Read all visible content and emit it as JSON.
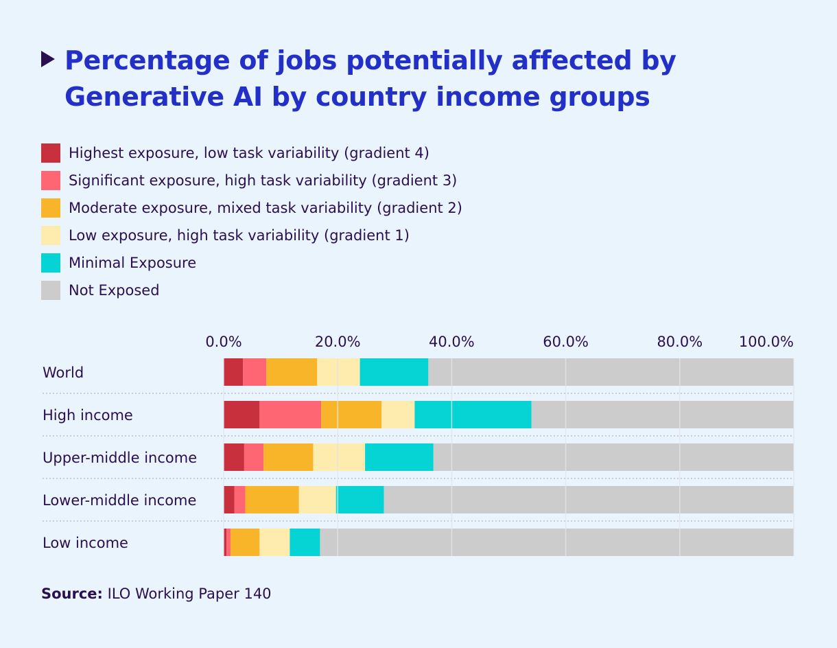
{
  "chart_data": {
    "type": "bar",
    "orientation": "horizontal",
    "stacked": true,
    "title": "Percentage of jobs potentially affected by Generative AI by country income groups",
    "categories": [
      "World",
      "High income",
      "Upper-middle income",
      "Lower-middle income",
      "Low income"
    ],
    "series": [
      {
        "name": "Highest exposure, low task variability (gradient 4)",
        "color": "#c8303d",
        "values": [
          3.4,
          6.3,
          3.6,
          1.9,
          0.5
        ]
      },
      {
        "name": "Significant exposure, high task variability (gradient 3)",
        "color": "#fd6672",
        "values": [
          4.1,
          10.8,
          3.4,
          1.9,
          0.7
        ]
      },
      {
        "name": "Moderate exposure, mixed task variability (gradient 2)",
        "color": "#f9b52a",
        "values": [
          8.9,
          10.6,
          8.7,
          9.4,
          5.1
        ]
      },
      {
        "name": "Low exposure, high task variability (gradient 1)",
        "color": "#feebae",
        "values": [
          7.5,
          5.8,
          9.1,
          6.5,
          5.3
        ]
      },
      {
        "name": "Minimal Exposure",
        "color": "#06d3d3",
        "values": [
          12.0,
          20.5,
          12.0,
          8.4,
          5.3
        ]
      },
      {
        "name": "Not Exposed",
        "color": "#cccccc",
        "values": [
          64.1,
          46.0,
          63.2,
          71.9,
          83.1
        ]
      }
    ],
    "xlim": [
      0,
      100
    ],
    "xticks": [
      "0.0%",
      "20.0%",
      "40.0%",
      "60.0%",
      "80.0%",
      "100.0%"
    ],
    "grid": true,
    "legend_position": "top-left"
  },
  "source": {
    "label": "Source:",
    "text": " ILO Working Paper 140"
  }
}
